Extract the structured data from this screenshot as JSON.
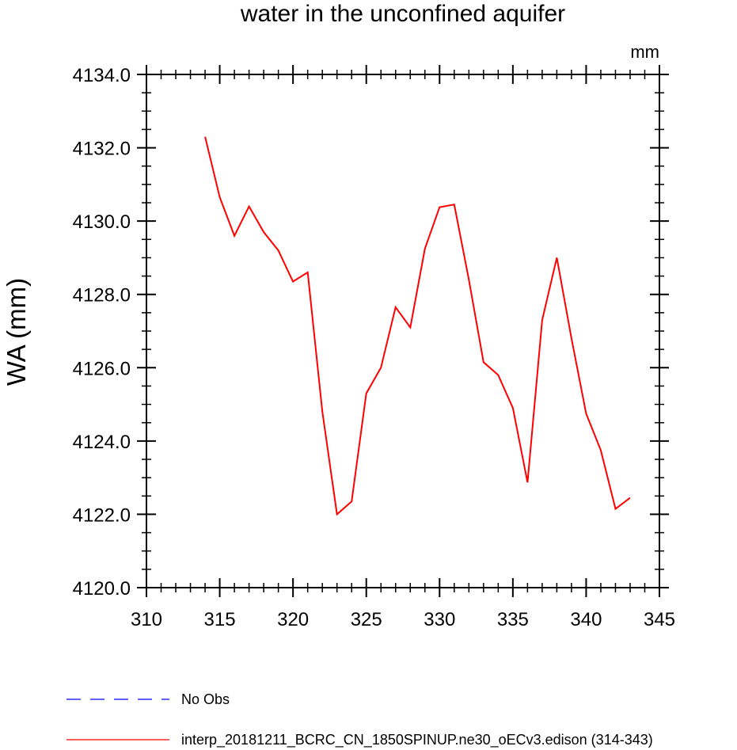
{
  "chart_data": {
    "type": "line",
    "title": "water in the unconfined aquifer",
    "units_label": "mm",
    "xlabel": "",
    "ylabel": "WA  (mm)",
    "xlim": [
      310,
      345
    ],
    "ylim": [
      4120.0,
      4134.0
    ],
    "x_ticks": [
      310,
      315,
      320,
      325,
      330,
      335,
      340,
      345
    ],
    "y_ticks": [
      4120.0,
      4122.0,
      4124.0,
      4126.0,
      4128.0,
      4130.0,
      4132.0,
      4134.0
    ],
    "x_tick_labels": [
      "310",
      "315",
      "320",
      "325",
      "330",
      "335",
      "340",
      "345"
    ],
    "y_tick_labels": [
      "4120.0",
      "4122.0",
      "4124.0",
      "4126.0",
      "4128.0",
      "4130.0",
      "4132.0",
      "4134.0"
    ],
    "grid": false,
    "legend_position": "bottom",
    "series": [
      {
        "name": "interp_20181211_BCRC_CN_1850SPINUP.ne30_oECv3.edison (314-343)",
        "color": "#ff0000",
        "style": "solid",
        "x": [
          314,
          315,
          316,
          317,
          318,
          319,
          320,
          321,
          322,
          323,
          324,
          325,
          326,
          327,
          328,
          329,
          330,
          331,
          332,
          333,
          334,
          335,
          336,
          337,
          338,
          339,
          340,
          341,
          342,
          343
        ],
        "y": [
          4132.3,
          4130.65,
          4129.6,
          4130.4,
          4129.7,
          4129.2,
          4128.35,
          4128.6,
          4124.8,
          4122.0,
          4122.35,
          4125.3,
          4126.0,
          4127.65,
          4127.1,
          4129.25,
          4130.38,
          4130.45,
          4128.4,
          4126.15,
          4125.8,
          4124.9,
          4122.87,
          4127.3,
          4129.0,
          4126.8,
          4124.75,
          4123.75,
          4122.15,
          4122.45
        ]
      },
      {
        "name": "No Obs",
        "color": "#0000ff",
        "style": "dashed",
        "x": [],
        "y": []
      }
    ]
  }
}
